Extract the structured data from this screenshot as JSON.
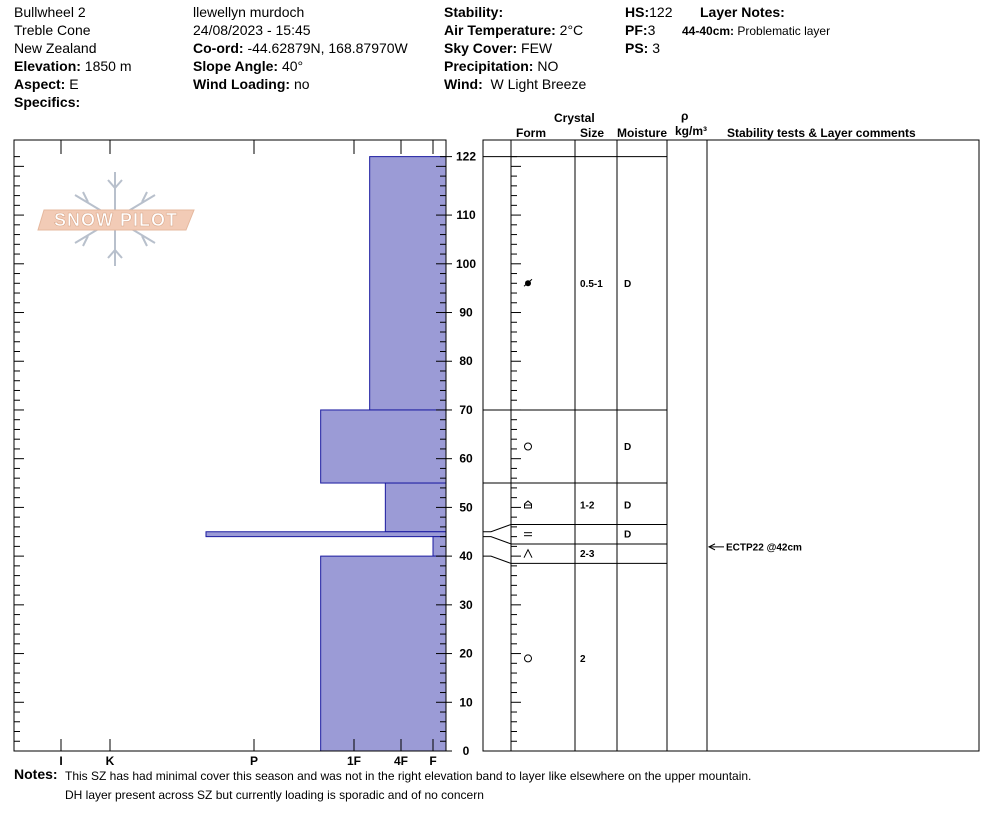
{
  "header": {
    "col1": {
      "site": "Bullwheel 2",
      "area": "Treble Cone",
      "country": "New Zealand",
      "elevation_label": "Elevation:",
      "elevation_value": "1850 m",
      "aspect_label": "Aspect:",
      "aspect_value": "E",
      "specifics_label": "Specifics:"
    },
    "col2": {
      "observer": "llewellyn murdoch",
      "datetime": "24/08/2023 - 15:45",
      "coord_label": "Co-ord:",
      "coord_value": "-44.62879N, 168.87970W",
      "slope_label": "Slope Angle:",
      "slope_value": "40°",
      "wind_loading_label": "Wind Loading:",
      "wind_loading_value": "no"
    },
    "col3": {
      "stability_label": "Stability:",
      "air_temp_label": "Air Temperature:",
      "air_temp_value": "2°C",
      "sky_label": "Sky Cover:",
      "sky_value": "FEW",
      "precip_label": "Precipitation:",
      "precip_value": "NO",
      "wind_label": "Wind:",
      "wind_value": "W Light Breeze"
    },
    "col4": {
      "hs_label": "HS:",
      "hs_value": "122",
      "pf_label": "PF:",
      "pf_value": "3",
      "ps_label": "PS:",
      "ps_value": "3"
    },
    "layer_notes": {
      "title": "Layer Notes:",
      "range": "44-40cm:",
      "text": "Problematic layer"
    }
  },
  "table_headers": {
    "crystal": "Crystal",
    "form": "Form",
    "size": "Size",
    "moisture": "Moisture",
    "rho": "ρ",
    "density_unit": "kg/m³",
    "comments": "Stability tests & Layer comments"
  },
  "logo_text": "SNOW PILOT",
  "chart_data": {
    "type": "bar",
    "title": "",
    "hardness_scale": [
      "I",
      "K",
      "P",
      "1F",
      "4F",
      "F"
    ],
    "height_axis": {
      "min": 0,
      "max": 122,
      "ticks": [
        0,
        10,
        20,
        30,
        40,
        50,
        60,
        70,
        80,
        90,
        100,
        110,
        122
      ]
    },
    "layers": [
      {
        "bottom": 70,
        "top": 122,
        "hardness": "1F-"
      },
      {
        "bottom": 55,
        "top": 70,
        "hardness": "1F+"
      },
      {
        "bottom": 45,
        "top": 55,
        "hardness": "4F+"
      },
      {
        "bottom": 44,
        "top": 45,
        "hardness": "P+"
      },
      {
        "bottom": 40,
        "top": 44,
        "hardness": "F"
      },
      {
        "bottom": 0,
        "top": 40,
        "hardness": "1F+"
      }
    ],
    "strat_boundaries": [
      122,
      70,
      55,
      46.5,
      42.5,
      38.5
    ],
    "strat_rows": [
      {
        "height": 96,
        "form_icon": "decomposing-fragments",
        "size": "0.5-1",
        "moisture": "D"
      },
      {
        "height": 62.5,
        "form_icon": "rounded-grains",
        "size": "",
        "moisture": "D"
      },
      {
        "height": 50.5,
        "form_icon": "faceted-crystals",
        "size": "1-2",
        "moisture": "D"
      },
      {
        "height": 44.5,
        "form_icon": "surface-hoar",
        "size": "",
        "moisture": "D"
      },
      {
        "height": 40.5,
        "form_icon": "depth-hoar",
        "size": "2-3",
        "moisture": ""
      },
      {
        "height": 19,
        "form_icon": "rounded-grains",
        "size": "2",
        "moisture": ""
      }
    ],
    "tests": [
      {
        "height": 42,
        "label": "ECTP22 @42cm"
      }
    ]
  },
  "notes": {
    "label": "Notes:",
    "line1": "This SZ has had minimal cover this season and was not in the right elevation band to layer like elsewhere on the upper mountain.",
    "line2": "DH layer present across SZ but currently loading is sporadic and of no concern"
  }
}
